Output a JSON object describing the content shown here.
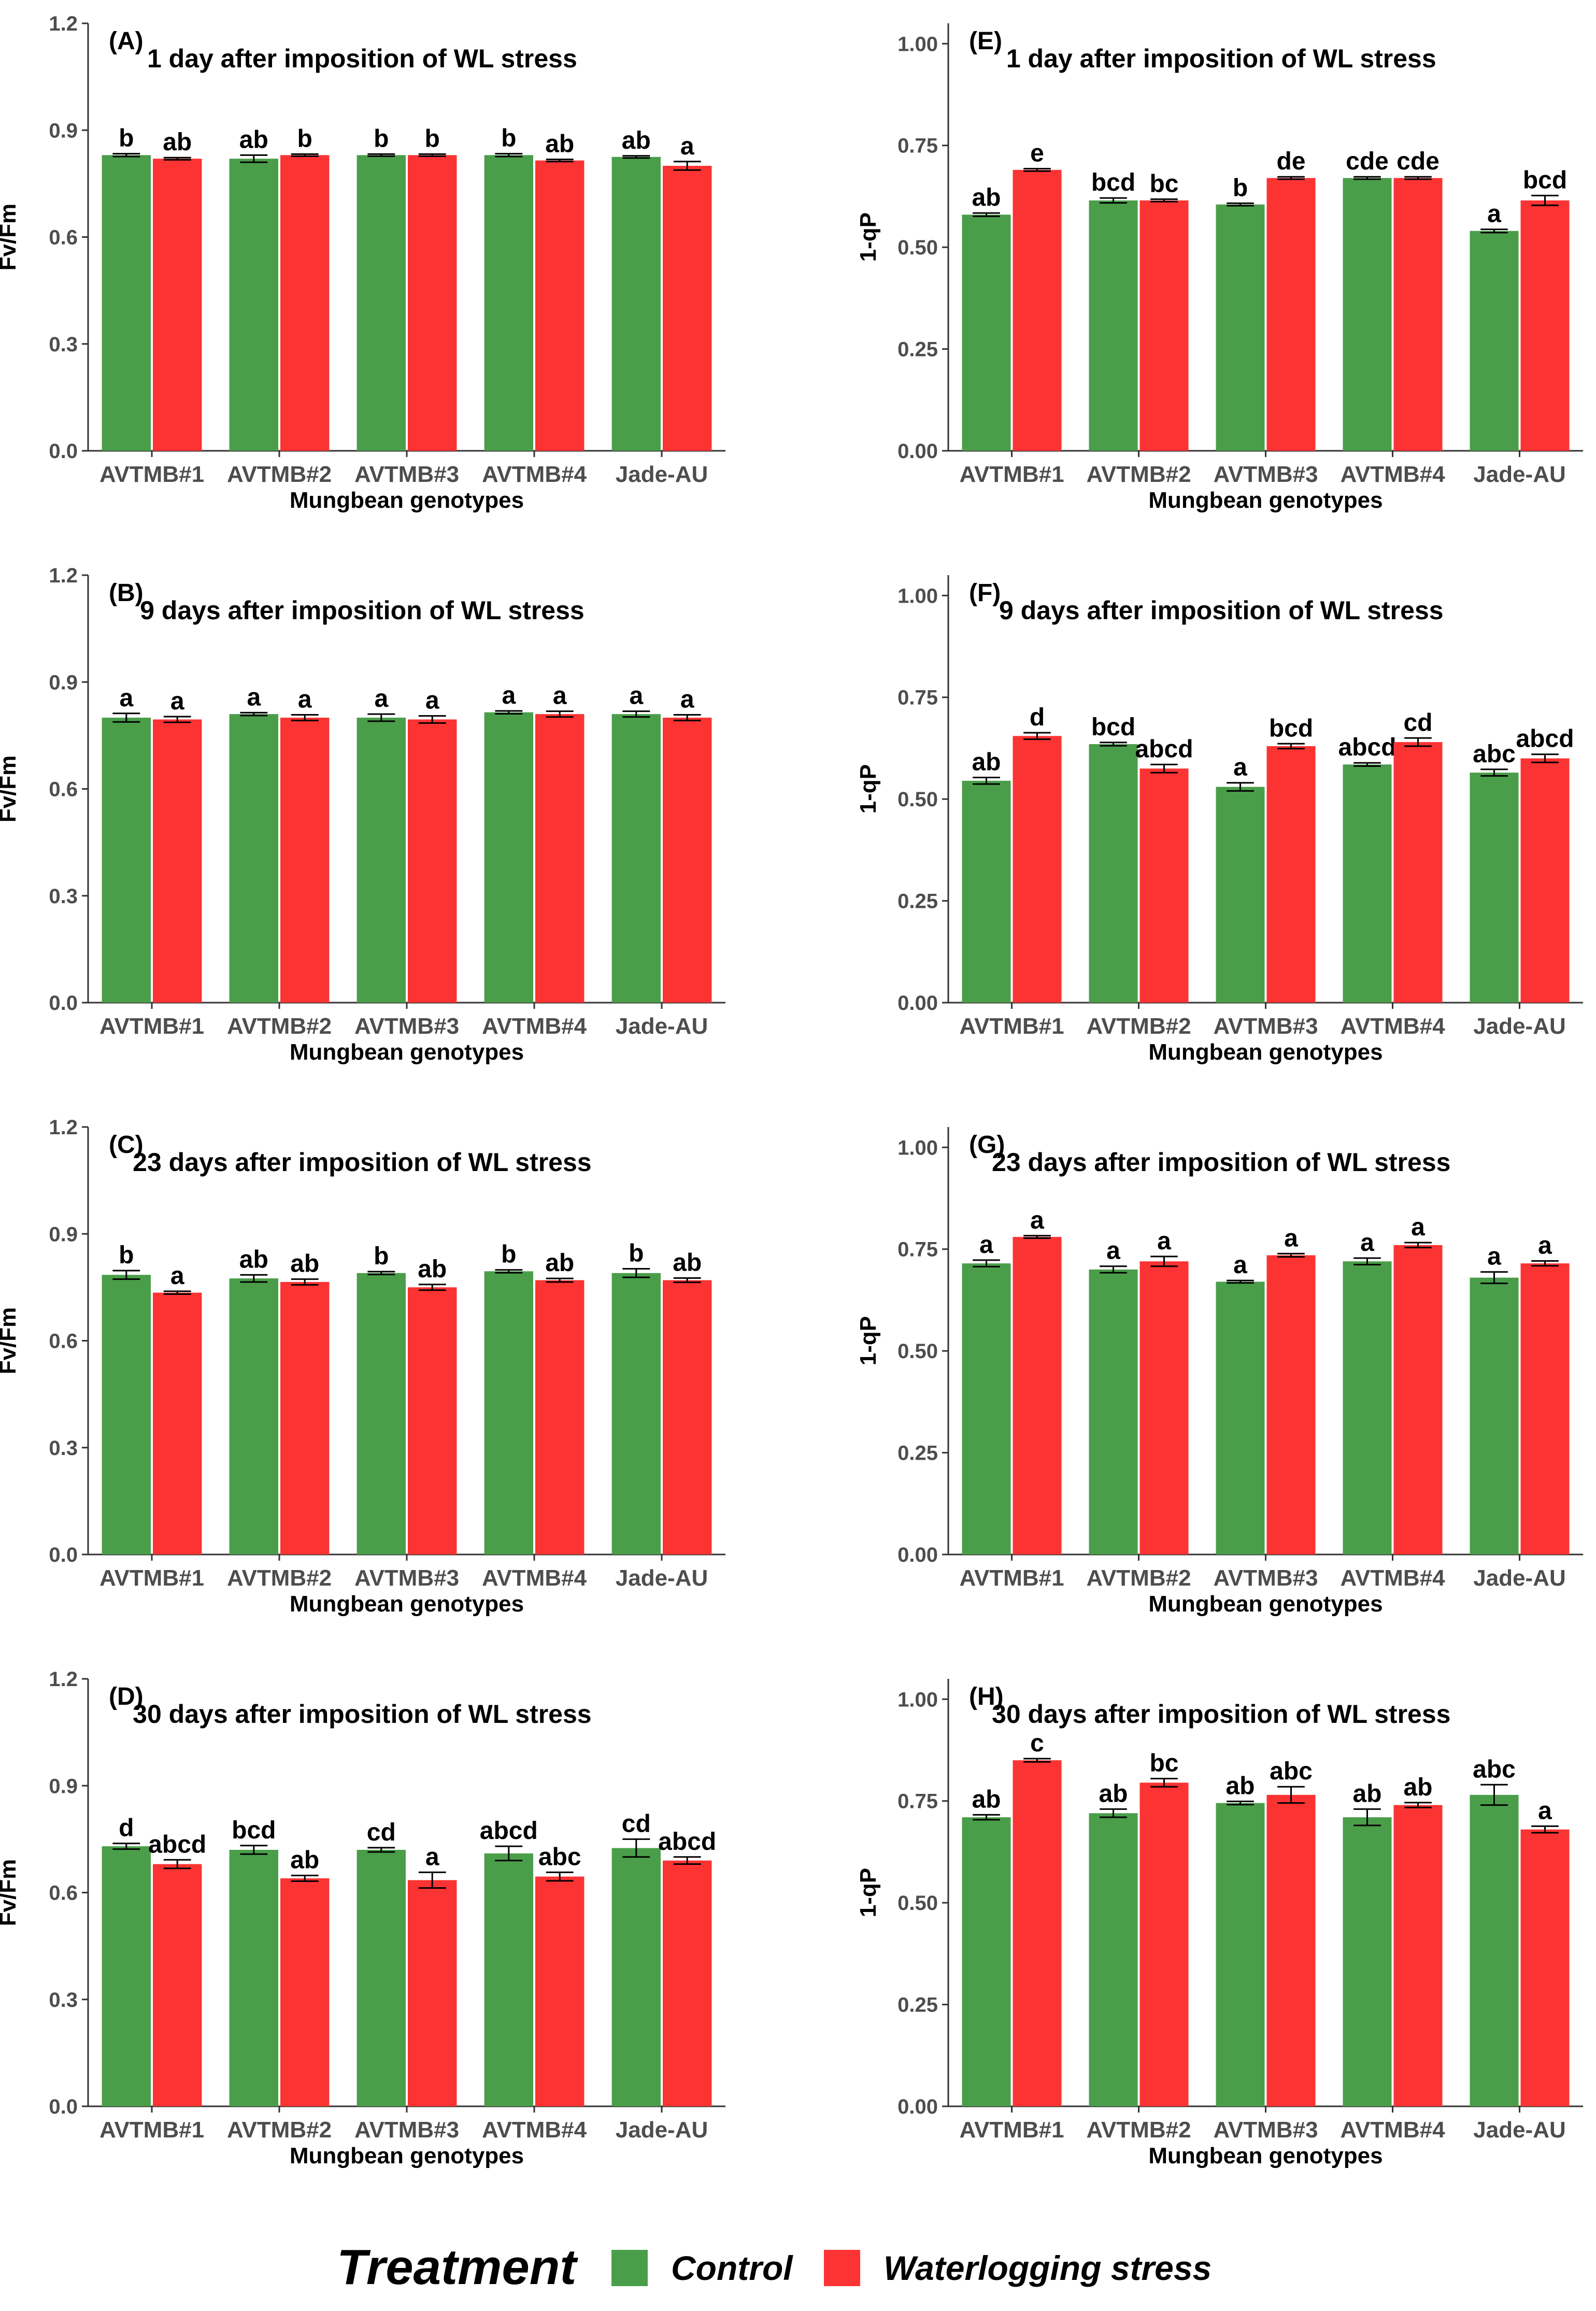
{
  "chart_data": [
    {
      "type": "bar",
      "id": "A",
      "letter": "(A)",
      "title": "1 day after imposition of WL stress",
      "xlabel": "Mungbean genotypes",
      "ylabel": "Fv/Fm",
      "ylim": [
        0,
        1.2
      ],
      "yticks": [
        "0.0",
        "0.3",
        "0.6",
        "0.9",
        "1.2"
      ],
      "categories": [
        "AVTMB#1",
        "AVTMB#2",
        "AVTMB#3",
        "AVTMB#4",
        "Jade-AU"
      ],
      "series": [
        {
          "name": "Control",
          "values": [
            0.83,
            0.82,
            0.83,
            0.83,
            0.825
          ],
          "errors": [
            0.004,
            0.01,
            0.003,
            0.004,
            0.003
          ],
          "labels": [
            "b",
            "ab",
            "b",
            "b",
            "ab"
          ]
        },
        {
          "name": "Waterlogging stress",
          "values": [
            0.82,
            0.83,
            0.83,
            0.815,
            0.8
          ],
          "errors": [
            0.003,
            0.003,
            0.003,
            0.003,
            0.012
          ],
          "labels": [
            "ab",
            "b",
            "b",
            "ab",
            "a"
          ]
        }
      ]
    },
    {
      "type": "bar",
      "id": "B",
      "letter": "(B)",
      "title": "9 days after imposition of WL stress",
      "xlabel": "Mungbean genotypes",
      "ylabel": "Fv/Fm",
      "ylim": [
        0,
        1.2
      ],
      "yticks": [
        "0.0",
        "0.3",
        "0.6",
        "0.9",
        "1.2"
      ],
      "categories": [
        "AVTMB#1",
        "AVTMB#2",
        "AVTMB#3",
        "AVTMB#4",
        "Jade-AU"
      ],
      "series": [
        {
          "name": "Control",
          "values": [
            0.8,
            0.81,
            0.8,
            0.815,
            0.81
          ],
          "errors": [
            0.012,
            0.004,
            0.01,
            0.004,
            0.008
          ],
          "labels": [
            "a",
            "a",
            "a",
            "a",
            "a"
          ]
        },
        {
          "name": "Waterlogging stress",
          "values": [
            0.795,
            0.8,
            0.795,
            0.81,
            0.8
          ],
          "errors": [
            0.008,
            0.008,
            0.01,
            0.008,
            0.008
          ],
          "labels": [
            "a",
            "a",
            "a",
            "a",
            "a"
          ]
        }
      ]
    },
    {
      "type": "bar",
      "id": "C",
      "letter": "(C)",
      "title": "23 days after imposition of WL stress",
      "xlabel": "Mungbean genotypes",
      "ylabel": "Fv/Fm",
      "ylim": [
        0,
        1.2
      ],
      "yticks": [
        "0.0",
        "0.3",
        "0.6",
        "0.9",
        "1.2"
      ],
      "categories": [
        "AVTMB#1",
        "AVTMB#2",
        "AVTMB#3",
        "AVTMB#4",
        "Jade-AU"
      ],
      "series": [
        {
          "name": "Control",
          "values": [
            0.785,
            0.775,
            0.79,
            0.795,
            0.79
          ],
          "errors": [
            0.012,
            0.01,
            0.004,
            0.004,
            0.012
          ],
          "labels": [
            "b",
            "ab",
            "b",
            "b",
            "b"
          ]
        },
        {
          "name": "Waterlogging stress",
          "values": [
            0.735,
            0.765,
            0.75,
            0.77,
            0.77
          ],
          "errors": [
            0.004,
            0.008,
            0.008,
            0.005,
            0.006
          ],
          "labels": [
            "a",
            "ab",
            "ab",
            "ab",
            "ab"
          ]
        }
      ]
    },
    {
      "type": "bar",
      "id": "D",
      "letter": "(D)",
      "title": "30 days after imposition of WL stress",
      "xlabel": "Mungbean genotypes",
      "ylabel": "Fv/Fm",
      "ylim": [
        0,
        1.2
      ],
      "yticks": [
        "0.0",
        "0.3",
        "0.6",
        "0.9",
        "1.2"
      ],
      "categories": [
        "AVTMB#1",
        "AVTMB#2",
        "AVTMB#3",
        "AVTMB#4",
        "Jade-AU"
      ],
      "series": [
        {
          "name": "Control",
          "values": [
            0.73,
            0.72,
            0.72,
            0.71,
            0.725
          ],
          "errors": [
            0.008,
            0.012,
            0.006,
            0.02,
            0.025
          ],
          "labels": [
            "d",
            "bcd",
            "cd",
            "abcd",
            "cd"
          ]
        },
        {
          "name": "Waterlogging stress",
          "values": [
            0.68,
            0.64,
            0.635,
            0.645,
            0.69
          ],
          "errors": [
            0.012,
            0.008,
            0.022,
            0.012,
            0.01
          ],
          "labels": [
            "abcd",
            "ab",
            "a",
            "abc",
            "abcd"
          ]
        }
      ]
    },
    {
      "type": "bar",
      "id": "E",
      "letter": "(E)",
      "title": "1 day after imposition of WL stress",
      "xlabel": "Mungbean genotypes",
      "ylabel": "1-qP",
      "ylim": [
        0,
        1.05
      ],
      "yticks": [
        "0.00",
        "0.25",
        "0.50",
        "0.75",
        "1.00"
      ],
      "categories": [
        "AVTMB#1",
        "AVTMB#2",
        "AVTMB#3",
        "AVTMB#4",
        "Jade-AU"
      ],
      "series": [
        {
          "name": "Control",
          "values": [
            0.58,
            0.615,
            0.605,
            0.67,
            0.54
          ],
          "errors": [
            0.004,
            0.006,
            0.003,
            0.003,
            0.004
          ],
          "labels": [
            "ab",
            "bcd",
            "b",
            "cde",
            "a"
          ]
        },
        {
          "name": "Waterlogging stress",
          "values": [
            0.69,
            0.615,
            0.67,
            0.67,
            0.615
          ],
          "errors": [
            0.003,
            0.003,
            0.003,
            0.003,
            0.012
          ],
          "labels": [
            "e",
            "bc",
            "de",
            "cde",
            "bcd"
          ]
        }
      ]
    },
    {
      "type": "bar",
      "id": "F",
      "letter": "(F)",
      "title": "9 days after imposition of WL stress",
      "xlabel": "Mungbean genotypes",
      "ylabel": "1-qP",
      "ylim": [
        0,
        1.05
      ],
      "yticks": [
        "0.00",
        "0.25",
        "0.50",
        "0.75",
        "1.00"
      ],
      "categories": [
        "AVTMB#1",
        "AVTMB#2",
        "AVTMB#3",
        "AVTMB#4",
        "Jade-AU"
      ],
      "series": [
        {
          "name": "Control",
          "values": [
            0.545,
            0.635,
            0.53,
            0.585,
            0.565
          ],
          "errors": [
            0.008,
            0.004,
            0.01,
            0.004,
            0.008
          ],
          "labels": [
            "ab",
            "bcd",
            "a",
            "abcd",
            "abc"
          ]
        },
        {
          "name": "Waterlogging stress",
          "values": [
            0.655,
            0.575,
            0.63,
            0.64,
            0.6
          ],
          "errors": [
            0.008,
            0.01,
            0.006,
            0.01,
            0.01
          ],
          "labels": [
            "d",
            "abcd",
            "bcd",
            "cd",
            "abcd"
          ]
        }
      ]
    },
    {
      "type": "bar",
      "id": "G",
      "letter": "(G)",
      "title": "23 days after imposition of WL stress",
      "xlabel": "Mungbean genotypes",
      "ylabel": "1-qP",
      "ylim": [
        0,
        1.05
      ],
      "yticks": [
        "0.00",
        "0.25",
        "0.50",
        "0.75",
        "1.00"
      ],
      "categories": [
        "AVTMB#1",
        "AVTMB#2",
        "AVTMB#3",
        "AVTMB#4",
        "Jade-AU"
      ],
      "series": [
        {
          "name": "Control",
          "values": [
            0.715,
            0.7,
            0.67,
            0.72,
            0.68
          ],
          "errors": [
            0.008,
            0.008,
            0.003,
            0.008,
            0.014
          ],
          "labels": [
            "a",
            "a",
            "a",
            "a",
            "a"
          ]
        },
        {
          "name": "Waterlogging stress",
          "values": [
            0.78,
            0.72,
            0.735,
            0.76,
            0.715
          ],
          "errors": [
            0.003,
            0.012,
            0.004,
            0.006,
            0.006
          ],
          "labels": [
            "a",
            "a",
            "a",
            "a",
            "a"
          ]
        }
      ]
    },
    {
      "type": "bar",
      "id": "H",
      "letter": "(H)",
      "title": "30 days after imposition of WL stress",
      "xlabel": "Mungbean genotypes",
      "ylabel": "1-qP",
      "ylim": [
        0,
        1.05
      ],
      "yticks": [
        "0.00",
        "0.25",
        "0.50",
        "0.75",
        "1.00"
      ],
      "categories": [
        "AVTMB#1",
        "AVTMB#2",
        "AVTMB#3",
        "AVTMB#4",
        "Jade-AU"
      ],
      "series": [
        {
          "name": "Control",
          "values": [
            0.71,
            0.72,
            0.745,
            0.71,
            0.765
          ],
          "errors": [
            0.006,
            0.01,
            0.004,
            0.02,
            0.025
          ],
          "labels": [
            "ab",
            "ab",
            "ab",
            "ab",
            "abc"
          ]
        },
        {
          "name": "Waterlogging stress",
          "values": [
            0.85,
            0.795,
            0.765,
            0.74,
            0.68
          ],
          "errors": [
            0.004,
            0.01,
            0.02,
            0.006,
            0.008
          ],
          "labels": [
            "c",
            "bc",
            "abc",
            "ab",
            "a"
          ]
        }
      ]
    }
  ],
  "legend": {
    "title": "Treatment",
    "items": [
      {
        "label": "Control",
        "color": "#4a9e4a"
      },
      {
        "label": "Waterlogging stress",
        "color": "#fc3333"
      }
    ]
  }
}
